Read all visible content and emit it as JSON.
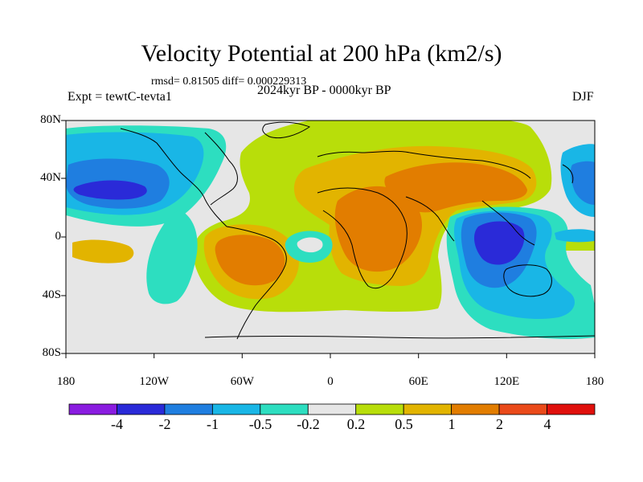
{
  "title": "Velocity Potential at 200 hPa (km2/s)",
  "stats": "rmsd= 0.81505 diff= 0.000229313",
  "subtitle": "2024kyr BP - 0000kyr BP",
  "experiment": "Expt = tewtC-tevta1",
  "season": "DJF",
  "y_axis": {
    "ticks": [
      "80N",
      "40N",
      "0",
      "40S",
      "80S"
    ]
  },
  "x_axis": {
    "ticks": [
      "180",
      "120W",
      "60W",
      "0",
      "60E",
      "120E",
      "180"
    ]
  },
  "colorbar": {
    "labels": [
      "-4",
      "-2",
      "-1",
      "-0.5",
      "-0.2",
      "0.2",
      "0.5",
      "1",
      "2",
      "4"
    ],
    "colors": [
      "#8a1ce0",
      "#2a2ad8",
      "#1f7ee0",
      "#19b6e6",
      "#2ddec0",
      "#e6e6e6",
      "#b8de0a",
      "#e2b400",
      "#e27d00",
      "#ea4a1a",
      "#e0100c"
    ]
  },
  "palette": {
    "neg_strong": "#2a2ad8",
    "neg_med": "#1f7ee0",
    "neg_light": "#19b6e6",
    "neg_weak": "#2ddec0",
    "neutral": "#e6e6e6",
    "pos_weak": "#b8de0a",
    "pos_med": "#e2b400",
    "pos_strong": "#e27d00"
  }
}
